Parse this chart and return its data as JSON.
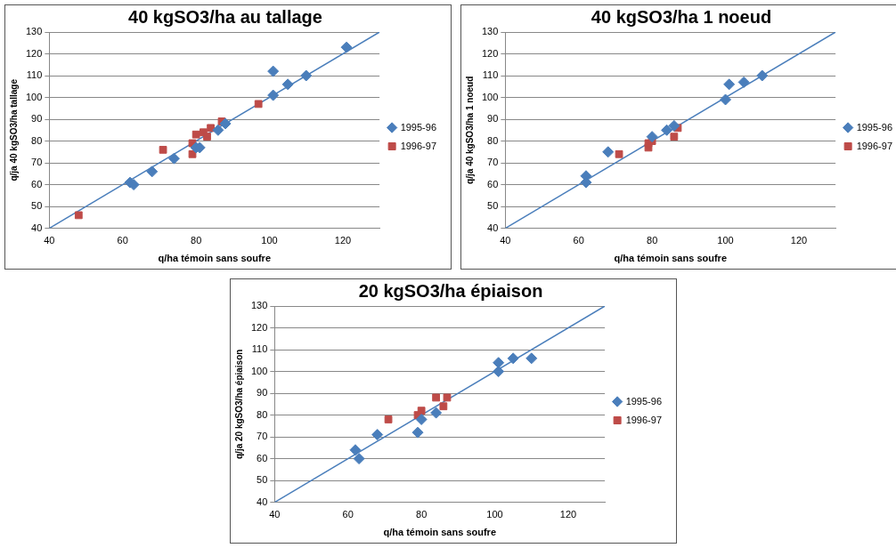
{
  "chart_data": [
    {
      "type": "scatter",
      "title": "40 kgSO3/ha au tallage",
      "xlabel": "q/ha témoin sans soufre",
      "ylabel": "q/ja 40 kgSO3/ha tallage",
      "xlim": [
        40,
        130
      ],
      "xticks": [
        40,
        60,
        80,
        100,
        120
      ],
      "ylim": [
        40,
        130
      ],
      "yticks": [
        40,
        50,
        60,
        70,
        80,
        90,
        100,
        110,
        120,
        130
      ],
      "grid": "y",
      "legend": "right",
      "series": [
        {
          "name": "1995-96",
          "color": "#4a7ebb",
          "marker": "diamond",
          "x": [
            62,
            63,
            68,
            74,
            80,
            81,
            86,
            88,
            101,
            101,
            105,
            110,
            121
          ],
          "values": [
            61,
            60,
            66,
            72,
            77,
            77,
            85,
            88,
            101,
            112,
            106,
            110,
            123
          ]
        },
        {
          "name": "1996-97",
          "color": "#be4b48",
          "marker": "square",
          "x": [
            48,
            71,
            79,
            79,
            80,
            82,
            83,
            84,
            87,
            97
          ],
          "values": [
            46,
            76,
            74,
            79,
            83,
            84,
            82,
            86,
            89,
            97
          ]
        },
        {
          "type": "line",
          "color": "#4a7ebb",
          "marker": "none",
          "x": [
            40,
            130
          ],
          "values": [
            40,
            130
          ]
        }
      ]
    },
    {
      "type": "scatter",
      "title": "40 kgSO3/ha 1 noeud",
      "xlabel": "q/ha témoin sans soufre",
      "ylabel": "q/ja 40 kgSO3/ha 1 noeud",
      "xlim": [
        40,
        130
      ],
      "xticks": [
        40,
        60,
        80,
        100,
        120
      ],
      "ylim": [
        40,
        130
      ],
      "yticks": [
        40,
        50,
        60,
        70,
        80,
        90,
        100,
        110,
        120,
        130
      ],
      "grid": "y",
      "legend": "right",
      "series": [
        {
          "name": "1995-96",
          "color": "#4a7ebb",
          "marker": "diamond",
          "x": [
            62,
            62,
            68,
            80,
            84,
            86,
            100,
            101,
            105,
            110
          ],
          "values": [
            64,
            61,
            75,
            82,
            85,
            87,
            99,
            106,
            107,
            110
          ]
        },
        {
          "name": "1996-97",
          "color": "#be4b48",
          "marker": "square",
          "x": [
            71,
            79,
            79,
            80,
            86,
            87
          ],
          "values": [
            74,
            77,
            79,
            80,
            82,
            86
          ]
        },
        {
          "type": "line",
          "color": "#4a7ebb",
          "marker": "none",
          "x": [
            40,
            130
          ],
          "values": [
            40,
            130
          ]
        }
      ]
    },
    {
      "type": "scatter",
      "title": "20 kgSO3/ha épiaison",
      "xlabel": "q/ha témoin sans soufre",
      "ylabel": "q/ja 20 kgSO3/ha épiaison",
      "xlim": [
        40,
        130
      ],
      "xticks": [
        40,
        60,
        80,
        100,
        120
      ],
      "ylim": [
        40,
        130
      ],
      "yticks": [
        40,
        50,
        60,
        70,
        80,
        90,
        100,
        110,
        120,
        130
      ],
      "grid": "y",
      "legend": "right",
      "series": [
        {
          "name": "1995-96",
          "color": "#4a7ebb",
          "marker": "diamond",
          "x": [
            62,
            63,
            68,
            79,
            80,
            84,
            101,
            101,
            105,
            110
          ],
          "values": [
            64,
            60,
            71,
            72,
            78,
            81,
            100,
            104,
            106,
            106
          ]
        },
        {
          "name": "1996-97",
          "color": "#be4b48",
          "marker": "square",
          "x": [
            71,
            79,
            80,
            84,
            86,
            87
          ],
          "values": [
            78,
            80,
            82,
            88,
            84,
            88
          ]
        },
        {
          "type": "line",
          "color": "#4a7ebb",
          "marker": "none",
          "x": [
            40,
            130
          ],
          "values": [
            40,
            130
          ]
        }
      ]
    }
  ]
}
